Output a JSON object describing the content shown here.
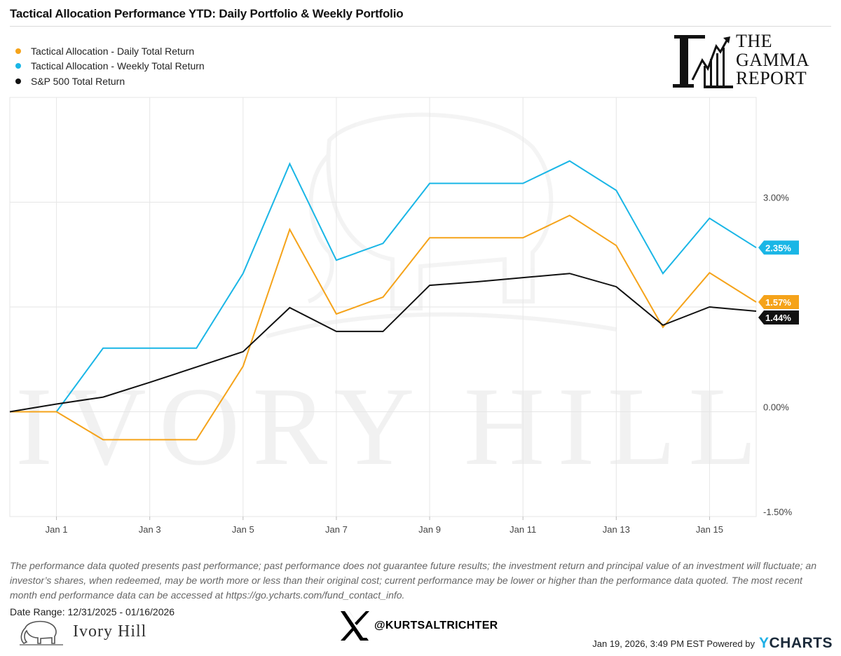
{
  "title": "Tactical Allocation Performance YTD: Daily Portfolio & Weekly Portfolio",
  "legend": [
    {
      "label": "Tactical Allocation - Daily Total Return",
      "color": "#f5a31a"
    },
    {
      "label": "Tactical Allocation - Weekly Total Return",
      "color": "#1ab6e6"
    },
    {
      "label": "S&P 500 Total Return",
      "color": "#111111"
    }
  ],
  "gamma_logo": {
    "line1": "THE",
    "line2": "GAMMA",
    "line3": "REPORT"
  },
  "watermark": "IVORY HILL",
  "chart_data": {
    "type": "line",
    "x": [
      "2025-12-31",
      "2026-01-01",
      "2026-01-02",
      "2026-01-03",
      "2026-01-04",
      "2026-01-05",
      "2026-01-06",
      "2026-01-07",
      "2026-01-08",
      "2026-01-09",
      "2026-01-10",
      "2026-01-11",
      "2026-01-12",
      "2026-01-13",
      "2026-01-14",
      "2026-01-15",
      "2026-01-16"
    ],
    "xtick_labels": [
      "Jan 1",
      "Jan 3",
      "Jan 5",
      "Jan 7",
      "Jan 9",
      "Jan 11",
      "Jan 13",
      "Jan 15"
    ],
    "xtick_dates": [
      "2026-01-01",
      "2026-01-03",
      "2026-01-05",
      "2026-01-07",
      "2026-01-09",
      "2026-01-11",
      "2026-01-13",
      "2026-01-15"
    ],
    "ytick_labels": [
      "3.00%",
      "0.00%",
      "-1.50%"
    ],
    "ytick_values": [
      3.0,
      0.0,
      -1.5
    ],
    "ylim": [
      -1.5,
      4.5
    ],
    "grid": true,
    "series": [
      {
        "name": "Tactical Allocation - Daily Total Return",
        "color": "#f5a31a",
        "end_label": "1.57%",
        "values": [
          0.0,
          0.0,
          -0.4,
          -0.4,
          -0.4,
          0.65,
          2.61,
          1.4,
          1.64,
          2.49,
          2.49,
          2.49,
          2.81,
          2.38,
          1.21,
          1.99,
          1.57
        ]
      },
      {
        "name": "Tactical Allocation - Weekly Total Return",
        "color": "#1ab6e6",
        "end_label": "2.35%",
        "values": [
          0.0,
          0.0,
          0.91,
          0.91,
          0.91,
          1.98,
          3.55,
          2.17,
          2.41,
          3.27,
          3.27,
          3.27,
          3.59,
          3.17,
          1.98,
          2.77,
          2.35
        ]
      },
      {
        "name": "S&P 500 Total Return",
        "color": "#111111",
        "end_label": "1.44%",
        "values": [
          0.0,
          0.11,
          0.21,
          0.42,
          0.64,
          0.86,
          1.49,
          1.15,
          1.15,
          1.81,
          1.86,
          1.92,
          1.98,
          1.79,
          1.24,
          1.5,
          1.44
        ]
      }
    ]
  },
  "disclaimer": "The performance data quoted presents past performance; past performance does not guarantee future results; the investment return and principal value of an investment will fluctuate; an investor’s shares, when redeemed, may be worth more or less than their original cost; current performance may be lower or higher than the performance data quoted. The most recent month end performance data can be accessed at https://go.ycharts.com/fund_contact_info.",
  "date_range": "Date Range: 12/31/2025 - 01/16/2026",
  "ivory_logo_text": "Ivory Hill",
  "x_handle": "@KURTSALTRICHTER",
  "footer_timestamp": "Jan 19, 2026, 3:49 PM EST Powered by",
  "ycharts_logo": {
    "y": "Y",
    "rest": "CHARTS"
  }
}
